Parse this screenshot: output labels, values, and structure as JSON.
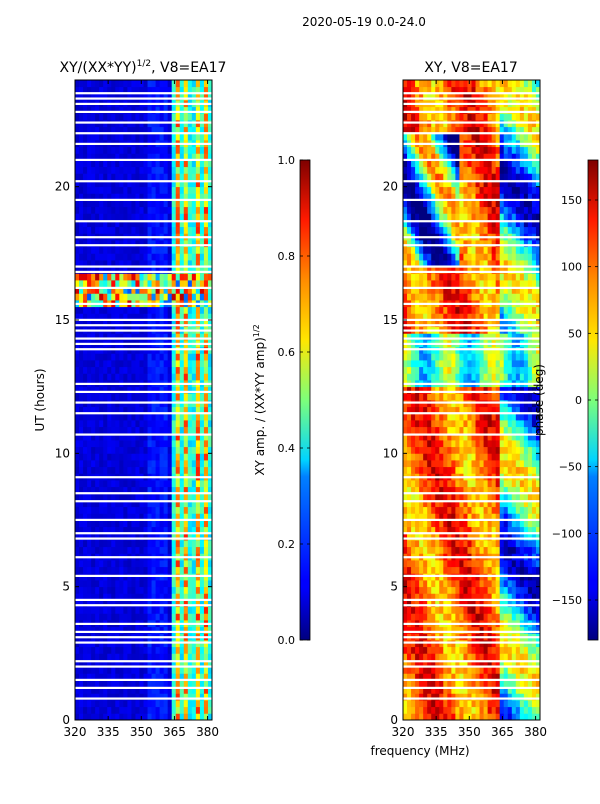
{
  "suptitle": "2020-05-19 0.0-24.0",
  "colors": {
    "jet_low": "#00007f",
    "jet_mid_blue": "#0080ff",
    "jet_cyan": "#27ffd0",
    "jet_yellow": "#ffe600",
    "jet_orange": "#ff6a00",
    "jet_high": "#7f0000",
    "flag_gap": "#ffffff"
  },
  "chart_data": [
    {
      "id": "amp",
      "type": "heatmap",
      "title_main": "XY/(XX*YY)",
      "title_sup": "1/2",
      "title_tail": ", V8=EA17",
      "xlabel": "",
      "ylabel": "UT (hours)",
      "xlim": [
        320,
        382
      ],
      "ylim": [
        0,
        24
      ],
      "xticks": [
        320,
        335,
        350,
        365,
        380
      ],
      "yticks": [
        0,
        5,
        10,
        15,
        20
      ],
      "colorbar": {
        "label": "XY amp. / (XX*YY amp)",
        "label_sup": "1/2",
        "range": [
          0.0,
          1.0
        ],
        "ticks": [
          "0.0",
          "0.2",
          "0.4",
          "0.6",
          "0.8",
          "1.0"
        ],
        "tick_values": [
          0.0,
          0.2,
          0.4,
          0.6,
          0.8,
          1.0
        ]
      },
      "bright_channels": [
        366.5,
        370.2,
        375.6,
        379.3
      ],
      "rfi_band_hours": [
        15.5,
        16.7
      ],
      "flagged_hours": [
        0.8,
        1.2,
        1.5,
        2.0,
        2.2,
        2.9,
        3.1,
        3.3,
        3.6,
        4.3,
        4.5,
        5.4,
        6.1,
        6.8,
        7.0,
        7.5,
        8.2,
        8.5,
        9.1,
        10.7,
        11.5,
        11.9,
        12.3,
        12.6,
        13.9,
        14.1,
        14.3,
        14.6,
        14.8,
        15.0,
        15.6,
        16.2,
        16.8,
        17.0,
        17.8,
        18.1,
        18.7,
        19.5,
        20.2,
        21.0,
        21.6,
        22.0,
        22.4,
        22.8,
        23.1,
        23.3,
        23.5
      ]
    },
    {
      "id": "phase",
      "type": "heatmap",
      "title_main": "XY, V8=EA17",
      "xlabel": "frequency (MHz)",
      "ylabel": "",
      "xlim": [
        320,
        382
      ],
      "ylim": [
        0,
        24
      ],
      "xticks": [
        320,
        335,
        350,
        365,
        380
      ],
      "yticks": [
        0,
        5,
        10,
        15,
        20
      ],
      "colorbar": {
        "label": "phase (deg)",
        "range": [
          -180,
          180
        ],
        "ticks": [
          "−150",
          "−100",
          "−50",
          "0",
          "50",
          "100",
          "150"
        ],
        "tick_values": [
          -150,
          -100,
          -50,
          0,
          50,
          100,
          150
        ]
      },
      "flagged_hours": [
        0.8,
        1.2,
        1.5,
        2.0,
        2.2,
        2.9,
        3.1,
        3.3,
        3.6,
        4.3,
        4.5,
        5.4,
        6.1,
        6.8,
        7.0,
        7.5,
        8.2,
        8.5,
        9.1,
        10.7,
        11.5,
        11.9,
        12.3,
        12.6,
        13.9,
        14.1,
        14.3,
        14.6,
        14.8,
        15.0,
        15.6,
        16.2,
        16.8,
        17.0,
        17.8,
        18.1,
        18.7,
        19.5,
        20.2,
        21.0,
        21.6,
        22.0,
        22.4,
        22.8,
        23.1,
        23.3,
        23.5
      ]
    }
  ]
}
